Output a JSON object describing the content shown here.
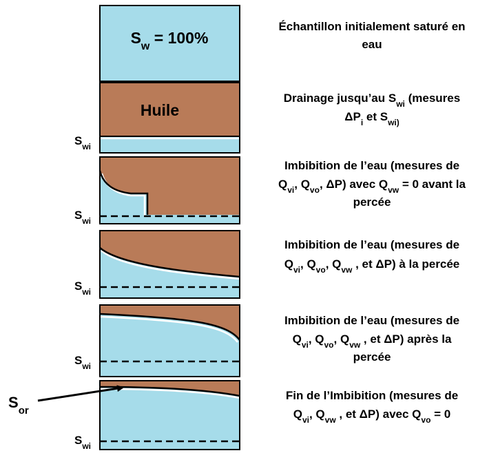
{
  "steps": [
    {
      "box_label": [
        "S",
        {
          "sub": "w"
        },
        " = 100%"
      ],
      "description": [
        [
          "Échantillon initialement saturé en"
        ],
        [
          "eau"
        ]
      ]
    },
    {
      "box_label": [
        "Huile"
      ],
      "side_label": [
        "S",
        {
          "sub": "wi"
        }
      ],
      "description": [
        [
          "Drainage jusqu’au S",
          {
            "sub": "wi"
          },
          " (mesures"
        ],
        [
          "ΔP",
          {
            "sub": "i"
          },
          " et S",
          {
            "sub": "wi)"
          }
        ]
      ]
    },
    {
      "side_label": [
        "S",
        {
          "sub": "wi"
        }
      ],
      "description": [
        [
          "Imbibition de l’eau (mesures de"
        ],
        [
          "Q",
          {
            "sub": "vi"
          },
          ", Q",
          {
            "sub": "vo"
          },
          ", ΔP) avec Q",
          {
            "sub": "vw"
          },
          " = 0 avant la"
        ],
        [
          "percée"
        ]
      ]
    },
    {
      "side_label": [
        "S",
        {
          "sub": "wi"
        }
      ],
      "description": [
        [
          "Imbibition de l’eau (mesures de"
        ],
        [
          "Q",
          {
            "sub": "vi"
          },
          ", Q",
          {
            "sub": "vo"
          },
          ", Q",
          {
            "sub": "vw"
          },
          " , et  ΔP) à la percée"
        ]
      ]
    },
    {
      "side_label": [
        "S",
        {
          "sub": "wi"
        }
      ],
      "description": [
        [
          "Imbibition de l’eau (mesures de"
        ],
        [
          "Q",
          {
            "sub": "vi"
          },
          ", Q",
          {
            "sub": "vo"
          },
          ", Q",
          {
            "sub": "vw"
          },
          " , et  ΔP) après la"
        ],
        [
          "percée"
        ]
      ]
    },
    {
      "side_label": [
        "S",
        {
          "sub": "wi"
        }
      ],
      "arrow_label": [
        "S",
        {
          "sub": "or"
        }
      ],
      "description": [
        [
          "Fin de l’Imbibition (mesures de"
        ],
        [
          "Q",
          {
            "sub": "vi"
          },
          ", Q",
          {
            "sub": "vw"
          },
          " , et  ΔP) avec Q",
          {
            "sub": "vo"
          },
          " = 0"
        ]
      ]
    }
  ]
}
